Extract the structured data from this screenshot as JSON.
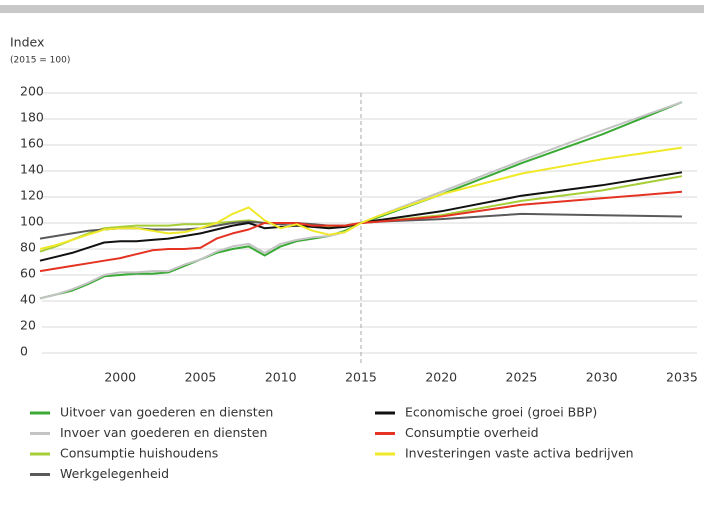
{
  "chart_data": {
    "type": "line",
    "y_axis_label": "Index",
    "y_axis_sublabel": "(2015 = 100)",
    "x": [
      1995,
      1996,
      1997,
      1998,
      1999,
      2000,
      2001,
      2002,
      2003,
      2004,
      2005,
      2006,
      2007,
      2008,
      2009,
      2010,
      2011,
      2012,
      2013,
      2014,
      2015,
      2016,
      2020,
      2025,
      2030,
      2035
    ],
    "xlim": [
      1995,
      2036
    ],
    "xticks": [
      2000,
      2005,
      2010,
      2015,
      2020,
      2025,
      2030,
      2035
    ],
    "ylim": [
      0,
      200
    ],
    "yticks": [
      0,
      20,
      40,
      60,
      80,
      100,
      120,
      140,
      160,
      180,
      200
    ],
    "grid": true,
    "reference_x": 2015,
    "series": [
      {
        "name": "Uitvoer van goederen en diensten",
        "color": "#3aa935",
        "values": [
          42,
          45,
          48,
          53,
          59,
          60,
          61,
          61,
          62,
          67,
          72,
          77,
          80,
          82,
          75,
          82,
          86,
          88,
          90,
          94,
          100,
          104,
          122,
          146,
          168,
          193
        ]
      },
      {
        "name": "Invoer van goederen en diensten",
        "color": "#c4c4c4",
        "values": [
          42,
          45,
          49,
          54,
          60,
          62,
          62,
          63,
          63,
          68,
          72,
          78,
          82,
          84,
          77,
          84,
          87,
          89,
          90,
          93,
          100,
          105,
          124,
          148,
          171,
          193
        ]
      },
      {
        "name": "Consumptie huishoudens",
        "color": "#a6ce39",
        "values": [
          78,
          82,
          87,
          92,
          96,
          97,
          98,
          98,
          98,
          99,
          99,
          100,
          101,
          102,
          100,
          100,
          100,
          98,
          97,
          97,
          100,
          101,
          106,
          117,
          125,
          136
        ]
      },
      {
        "name": "Werkgelegenheid",
        "color": "#5a5a5a",
        "values": [
          88,
          90,
          92,
          94,
          95,
          96,
          96,
          95,
          95,
          95,
          96,
          98,
          100,
          101,
          100,
          99,
          100,
          99,
          98,
          98,
          100,
          101,
          103,
          107,
          106,
          105
        ]
      },
      {
        "name": "Economische groei (groei BBP)",
        "color": "#111111",
        "values": [
          71,
          74,
          77,
          81,
          85,
          86,
          86,
          87,
          88,
          90,
          92,
          95,
          98,
          100,
          96,
          97,
          98,
          97,
          96,
          97,
          100,
          102,
          109,
          121,
          129,
          139
        ]
      },
      {
        "name": "Consumptie overheid",
        "color": "#e53323",
        "values": [
          63,
          65,
          67,
          69,
          71,
          73,
          76,
          79,
          80,
          80,
          81,
          88,
          92,
          95,
          100,
          100,
          100,
          98,
          98,
          98,
          100,
          101,
          105,
          114,
          119,
          124
        ]
      },
      {
        "name": "Investeringen vaste activa bedrijven",
        "color": "#f0e92a",
        "values": [
          80,
          83,
          87,
          91,
          95,
          96,
          96,
          94,
          92,
          93,
          96,
          100,
          107,
          112,
          102,
          96,
          99,
          94,
          91,
          93,
          100,
          105,
          122,
          138,
          149,
          158
        ]
      }
    ]
  }
}
